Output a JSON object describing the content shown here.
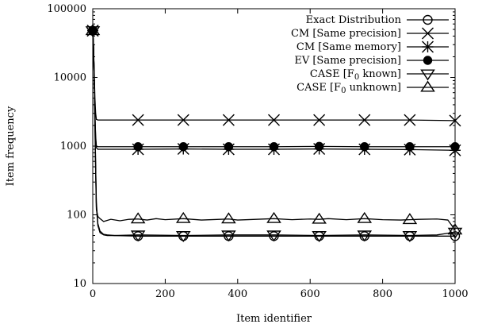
{
  "chart_data": {
    "type": "line",
    "title": "",
    "xlabel": "Item identifier",
    "ylabel": "Item frequency",
    "xlim": [
      0,
      1000
    ],
    "ylim": [
      10,
      100000
    ],
    "yscale": "log",
    "xticks": [
      0,
      200,
      400,
      600,
      800,
      1000
    ],
    "xtick_labels": [
      "0",
      "200",
      "400",
      "600",
      "800",
      "1000"
    ],
    "yticks": [
      10,
      100,
      1000,
      10000,
      100000
    ],
    "ytick_labels": [
      "10",
      "100",
      "1000",
      "10000",
      "100000"
    ],
    "grid": false,
    "legend_position": "top-right",
    "series": [
      {
        "name": "Exact Distribution",
        "marker": "circle-open",
        "points": [
          [
            0,
            48000
          ],
          [
            2,
            30000
          ],
          [
            4,
            10000
          ],
          [
            6,
            2500
          ],
          [
            8,
            500
          ],
          [
            10,
            130
          ],
          [
            14,
            70
          ],
          [
            20,
            55
          ],
          [
            30,
            51
          ],
          [
            40,
            50
          ],
          [
            60,
            50
          ],
          [
            125,
            49
          ],
          [
            250,
            49
          ],
          [
            375,
            49
          ],
          [
            500,
            49
          ],
          [
            625,
            49
          ],
          [
            750,
            49
          ],
          [
            875,
            49
          ],
          [
            1000,
            49
          ]
        ],
        "markers_x": [
          0,
          125,
          250,
          375,
          500,
          625,
          750,
          875,
          1000
        ]
      },
      {
        "name": "CM [Same precision]",
        "marker": "x",
        "points": [
          [
            0,
            48000
          ],
          [
            2,
            30000
          ],
          [
            4,
            12000
          ],
          [
            6,
            5000
          ],
          [
            8,
            3000
          ],
          [
            10,
            2450
          ],
          [
            14,
            2400
          ],
          [
            20,
            2400
          ],
          [
            125,
            2400
          ],
          [
            250,
            2400
          ],
          [
            375,
            2400
          ],
          [
            500,
            2400
          ],
          [
            625,
            2400
          ],
          [
            750,
            2400
          ],
          [
            875,
            2400
          ],
          [
            1000,
            2350
          ]
        ],
        "markers_x": [
          0,
          125,
          250,
          375,
          500,
          625,
          750,
          875,
          1000
        ]
      },
      {
        "name": "CM [Same memory]",
        "marker": "star",
        "points": [
          [
            0,
            48000
          ],
          [
            2,
            30000
          ],
          [
            4,
            10000
          ],
          [
            6,
            3000
          ],
          [
            8,
            1300
          ],
          [
            10,
            950
          ],
          [
            14,
            900
          ],
          [
            20,
            900
          ],
          [
            125,
            900
          ],
          [
            250,
            910
          ],
          [
            375,
            900
          ],
          [
            500,
            900
          ],
          [
            625,
            910
          ],
          [
            750,
            900
          ],
          [
            875,
            890
          ],
          [
            1000,
            870
          ]
        ],
        "markers_x": [
          0,
          125,
          250,
          375,
          500,
          625,
          750,
          875,
          1000
        ]
      },
      {
        "name": "EV [Same precision]",
        "marker": "circle-filled",
        "points": [
          [
            0,
            48000
          ],
          [
            2,
            30000
          ],
          [
            4,
            10000
          ],
          [
            6,
            3000
          ],
          [
            8,
            1400
          ],
          [
            10,
            1000
          ],
          [
            14,
            980
          ],
          [
            20,
            980
          ],
          [
            125,
            980
          ],
          [
            250,
            980
          ],
          [
            375,
            980
          ],
          [
            500,
            980
          ],
          [
            625,
            990
          ],
          [
            750,
            980
          ],
          [
            875,
            980
          ],
          [
            1000,
            980
          ]
        ],
        "markers_x": [
          0,
          125,
          250,
          375,
          500,
          625,
          750,
          875,
          1000
        ]
      },
      {
        "name": "CASE [F0 known]",
        "marker": "triangle-down",
        "points": [
          [
            0,
            48000
          ],
          [
            2,
            30000
          ],
          [
            4,
            10000
          ],
          [
            6,
            2500
          ],
          [
            8,
            500
          ],
          [
            10,
            150
          ],
          [
            14,
            75
          ],
          [
            20,
            58
          ],
          [
            30,
            52
          ],
          [
            40,
            51
          ],
          [
            60,
            50
          ],
          [
            125,
            51
          ],
          [
            250,
            50
          ],
          [
            375,
            51
          ],
          [
            500,
            51
          ],
          [
            625,
            50
          ],
          [
            750,
            51
          ],
          [
            875,
            50
          ],
          [
            950,
            51
          ],
          [
            1000,
            56
          ]
        ],
        "markers_x": [
          0,
          125,
          250,
          375,
          500,
          625,
          750,
          875,
          1000
        ]
      },
      {
        "name": "CASE [F0 unknown]",
        "marker": "triangle-up",
        "points": [
          [
            0,
            48000
          ],
          [
            2,
            30000
          ],
          [
            4,
            10000
          ],
          [
            6,
            2000
          ],
          [
            8,
            400
          ],
          [
            10,
            120
          ],
          [
            14,
            95
          ],
          [
            20,
            88
          ],
          [
            30,
            80
          ],
          [
            50,
            86
          ],
          [
            75,
            82
          ],
          [
            100,
            86
          ],
          [
            125,
            87
          ],
          [
            150,
            84
          ],
          [
            175,
            88
          ],
          [
            200,
            85
          ],
          [
            250,
            88
          ],
          [
            300,
            84
          ],
          [
            350,
            86
          ],
          [
            375,
            87
          ],
          [
            400,
            84
          ],
          [
            450,
            86
          ],
          [
            500,
            88
          ],
          [
            550,
            85
          ],
          [
            600,
            87
          ],
          [
            625,
            86
          ],
          [
            650,
            88
          ],
          [
            700,
            85
          ],
          [
            750,
            88
          ],
          [
            800,
            85
          ],
          [
            850,
            84
          ],
          [
            875,
            85
          ],
          [
            900,
            86
          ],
          [
            950,
            87
          ],
          [
            980,
            84
          ],
          [
            1000,
            60
          ]
        ],
        "markers_x": [
          0,
          125,
          250,
          375,
          500,
          625,
          750,
          875,
          1000
        ]
      }
    ]
  }
}
